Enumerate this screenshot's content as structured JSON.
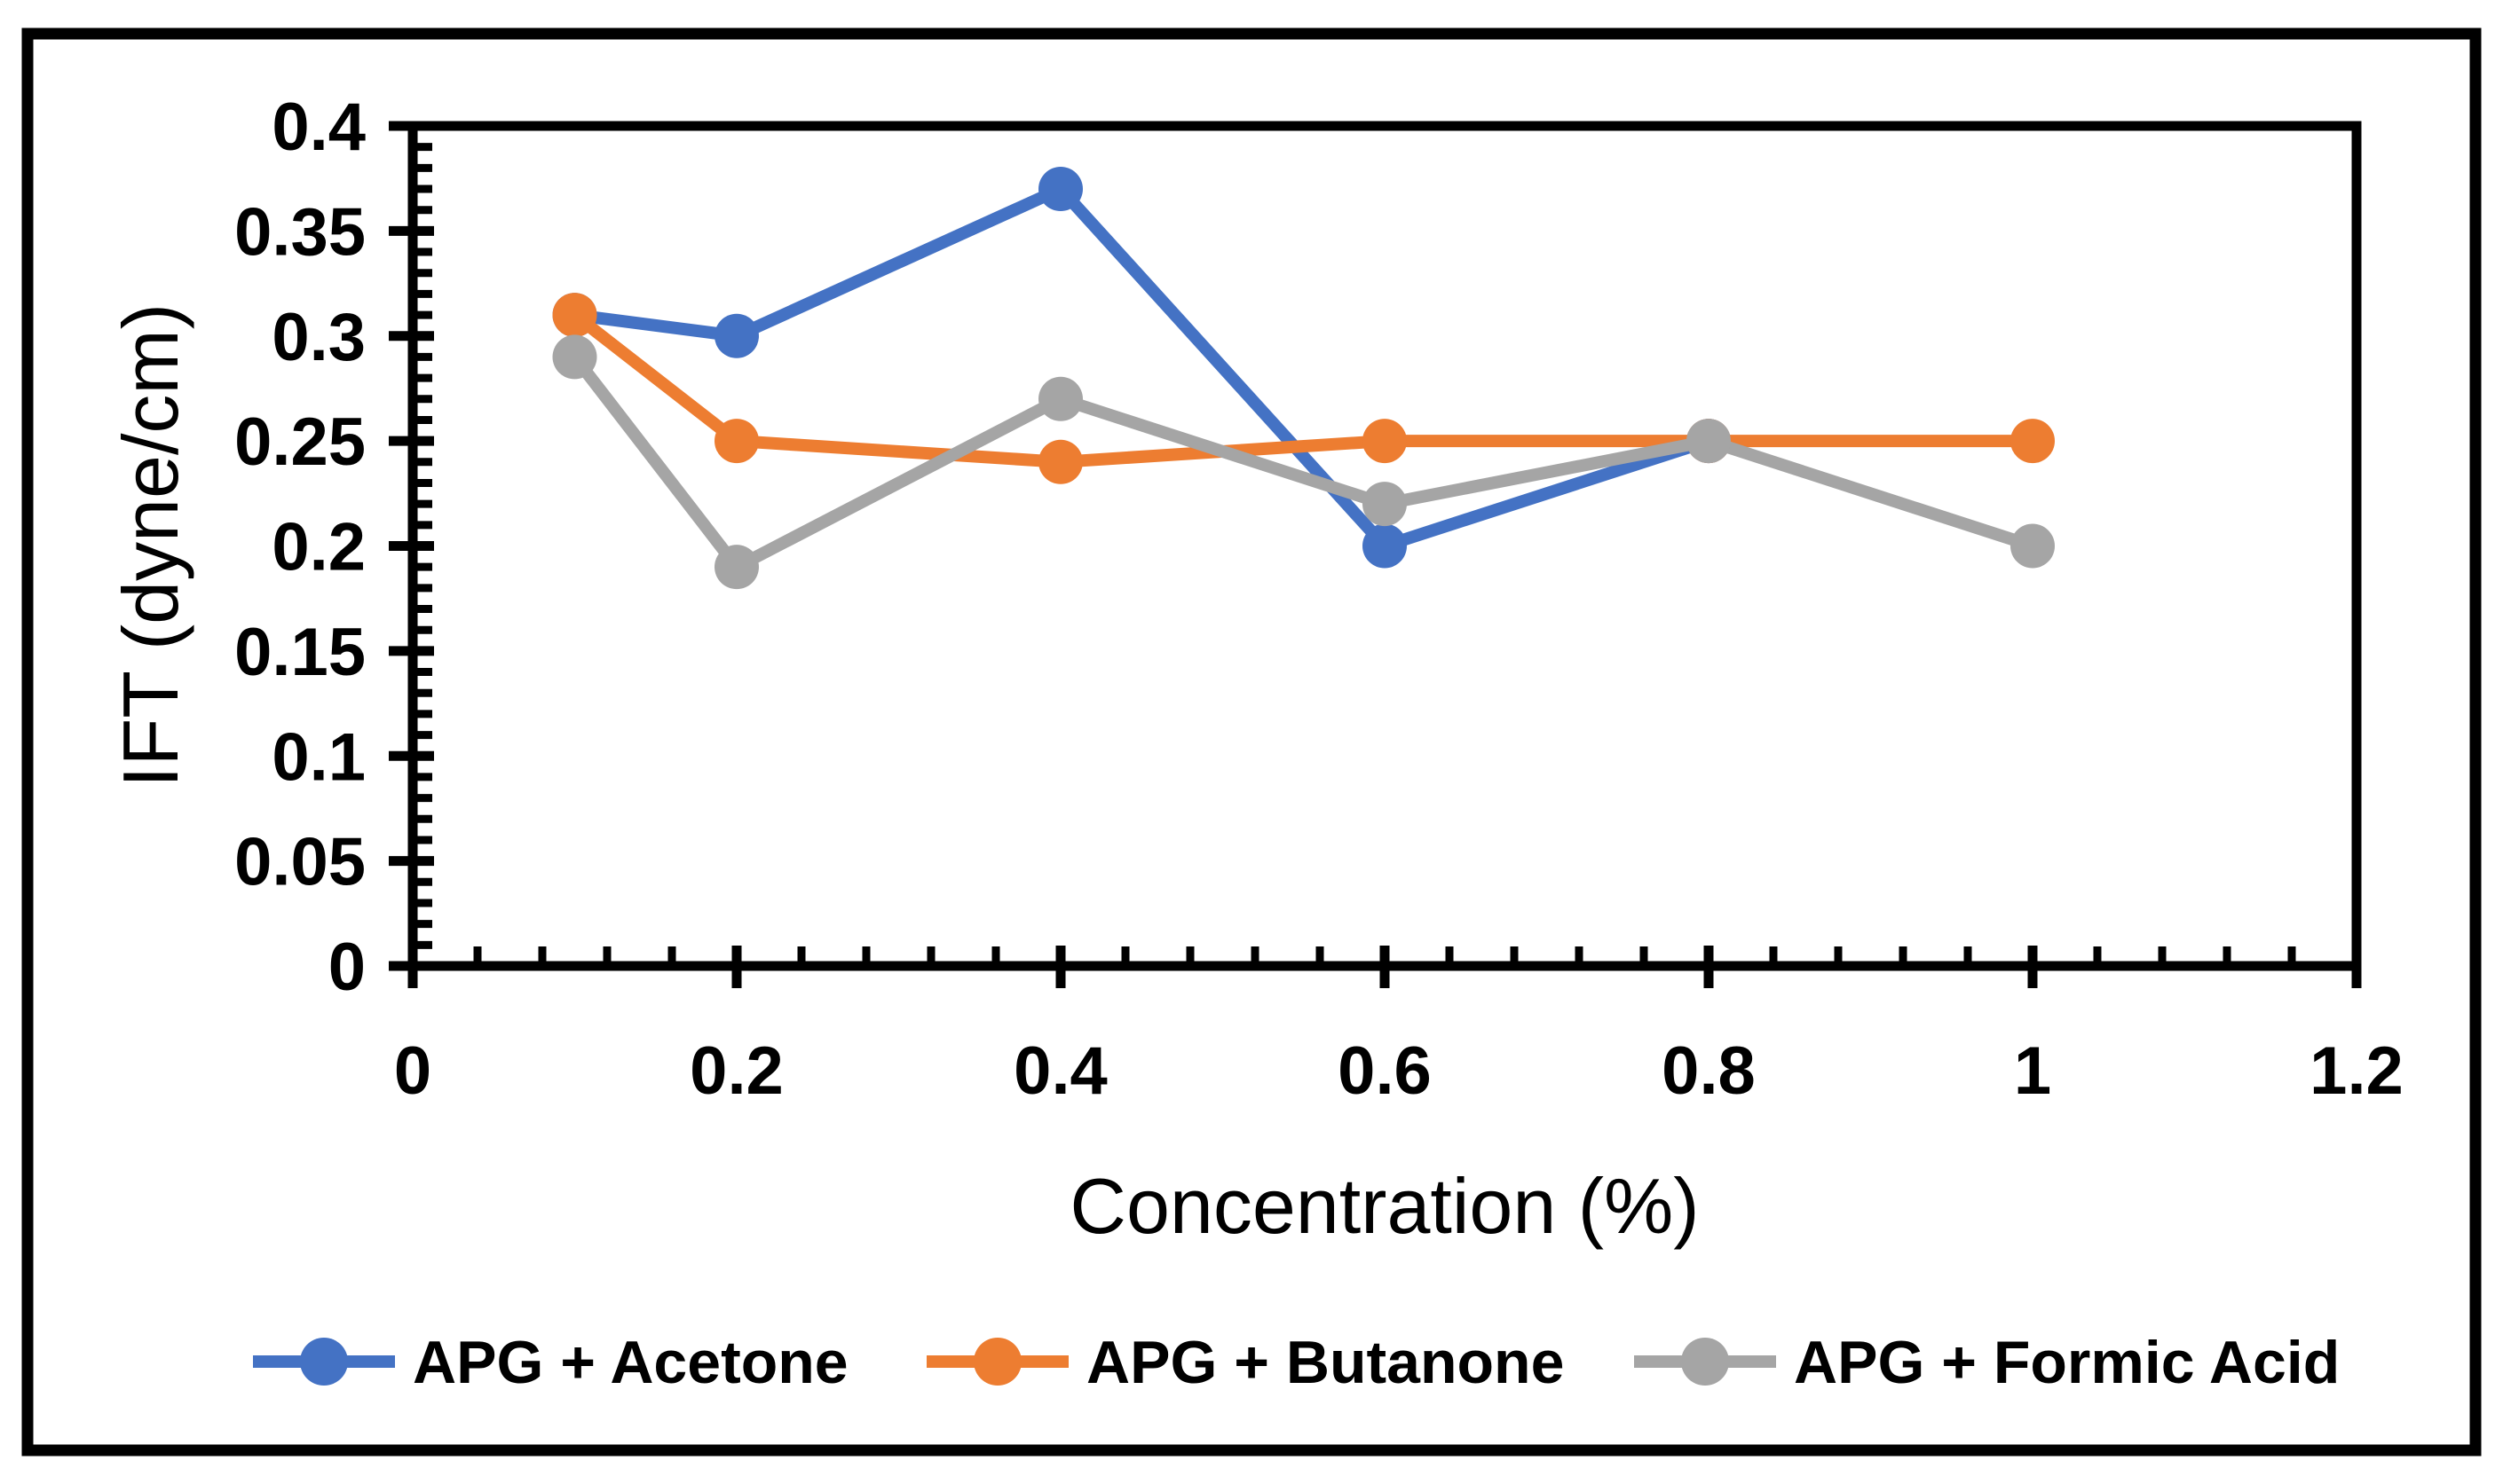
{
  "figure": {
    "background": "#FFFFFF",
    "frame_color": "#000000",
    "axis_color": "#000000"
  },
  "chart_data": {
    "type": "line",
    "title": "",
    "xlabel": "Concentration (%)",
    "ylabel": "IFT (dyne/cm)",
    "xlim": [
      0,
      1.2
    ],
    "ylim": [
      0,
      0.4
    ],
    "grid": false,
    "legend_position": "bottom",
    "x_major_tick_labels": [
      "0",
      "0.2",
      "0.4",
      "0.6",
      "0.8",
      "1",
      "1.2"
    ],
    "y_major_tick_labels": [
      "0",
      "0.05",
      "0.1",
      "0.15",
      "0.2",
      "0.25",
      "0.3",
      "0.35",
      "0.4"
    ],
    "x_minor_unit": 0.04,
    "y_minor_unit": 0.01,
    "marker": "circle",
    "series": [
      {
        "name": "APG + Acetone",
        "color": "#4472C4",
        "points": [
          [
            0.1,
            0.31
          ],
          [
            0.2,
            0.3
          ],
          [
            0.4,
            0.37
          ],
          [
            0.6,
            0.2
          ],
          [
            0.8,
            0.25
          ]
        ]
      },
      {
        "name": "APG + Butanone",
        "color": "#ED7D31",
        "points": [
          [
            0.1,
            0.31
          ],
          [
            0.2,
            0.25
          ],
          [
            0.4,
            0.24
          ],
          [
            0.6,
            0.25
          ],
          [
            0.8,
            0.25
          ],
          [
            1.0,
            0.25
          ]
        ]
      },
      {
        "name": "APG + Formic Acid",
        "color": "#A5A5A5",
        "points": [
          [
            0.1,
            0.29
          ],
          [
            0.2,
            0.19
          ],
          [
            0.4,
            0.27
          ],
          [
            0.6,
            0.22
          ],
          [
            0.8,
            0.25
          ],
          [
            1.0,
            0.2
          ]
        ]
      }
    ]
  }
}
